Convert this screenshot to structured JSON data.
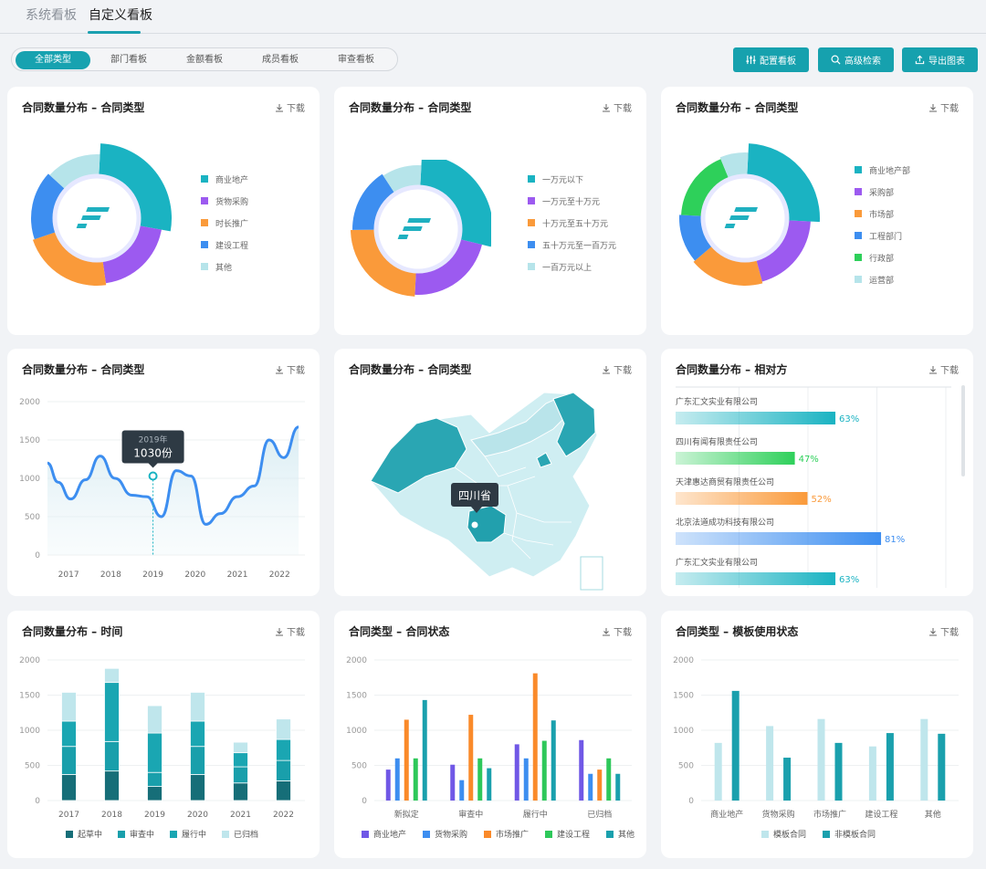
{
  "top_tabs": [
    "系统看板",
    "自定义看板"
  ],
  "segments": [
    "全部类型",
    "部门看板",
    "金额看板",
    "成员看板",
    "审查看板"
  ],
  "buttons": {
    "config": "配置看板",
    "search": "高级检索",
    "export": "导出图表"
  },
  "download_label": "下载",
  "colors": {
    "teal": "#1ab3c2",
    "purple": "#9c5af0",
    "orange": "#fa9a3a",
    "blue": "#3d8ef0",
    "light": "#b6e4ea",
    "green": "#2ed05a",
    "dark_teal": "#166e78"
  },
  "cards": {
    "pie1": {
      "title": "合同数量分布 – 合同类型"
    },
    "pie2": {
      "title": "合同数量分布 – 合同类型"
    },
    "pie3": {
      "title": "合同数量分布 – 合同类型"
    },
    "line": {
      "title": "合同数量分布 – 合同类型"
    },
    "map": {
      "title": "合同数量分布 – 合同类型",
      "tooltip": "四川省"
    },
    "hbar": {
      "title": "合同数量分布 – 相对方"
    },
    "time": {
      "title": "合同数量分布 – 时间"
    },
    "status": {
      "title": "合同类型 – 合同状态"
    },
    "template": {
      "title": "合同类型 – 模板使用状态"
    }
  },
  "chart_data": [
    {
      "id": "pie1",
      "type": "pie",
      "labels": [
        "商业地产",
        "货物采购",
        "时长推广",
        "建设工程",
        "其他"
      ],
      "values": [
        27,
        20,
        22,
        17,
        14
      ],
      "colors": [
        "#1ab3c2",
        "#9c5af0",
        "#fa9a3a",
        "#3d8ef0",
        "#b6e4ea"
      ]
    },
    {
      "id": "pie2",
      "type": "pie",
      "labels": [
        "一万元以下",
        "一万元至十万元",
        "十万元至五十万元",
        "五十万元至一百万元",
        "一百万元以上"
      ],
      "values": [
        28,
        22,
        24,
        16,
        10
      ],
      "colors": [
        "#1ab3c2",
        "#9c5af0",
        "#fa9a3a",
        "#3d8ef0",
        "#b6e4ea"
      ]
    },
    {
      "id": "pie3",
      "type": "pie",
      "labels": [
        "商业地产部",
        "采购部",
        "市场部",
        "工程部门",
        "行政部",
        "运营部"
      ],
      "values": [
        25,
        20,
        18,
        12,
        18,
        7
      ],
      "colors": [
        "#1ab3c2",
        "#9c5af0",
        "#fa9a3a",
        "#3d8ef0",
        "#2ed05a",
        "#b6e4ea"
      ]
    },
    {
      "id": "line",
      "type": "line",
      "categories": [
        "2017",
        "2018",
        "2019",
        "2020",
        "2021",
        "2022"
      ],
      "x": [
        2016.5,
        2016.75,
        2017.05,
        2017.4,
        2017.75,
        2018.1,
        2018.5,
        2018.85,
        2019.2,
        2019.55,
        2019.9,
        2020.25,
        2020.6,
        2021.0,
        2021.4,
        2021.75,
        2022.1,
        2022.45
      ],
      "values": [
        1200,
        950,
        730,
        980,
        1290,
        1000,
        780,
        760,
        500,
        1100,
        1030,
        400,
        540,
        760,
        900,
        1500,
        1270,
        1670
      ],
      "ylim": [
        0,
        2000
      ],
      "yticks": [
        0,
        500,
        1000,
        1500,
        2000
      ],
      "tooltip": {
        "year": "2019年",
        "value": "1030份",
        "x": 2019.0
      }
    },
    {
      "id": "hbar",
      "type": "bar",
      "orientation": "horizontal",
      "categories": [
        "广东汇文实业有限公司",
        "四川有闻有限责任公司",
        "天津惠达商贸有限责任公司",
        "北京法道成功科技有限公司",
        "广东汇文实业有限公司"
      ],
      "values": [
        63,
        47,
        52,
        81,
        63
      ],
      "labels": [
        "63%",
        "47%",
        "52%",
        "81%",
        "63%"
      ],
      "colors": [
        "#1ab3c2",
        "#2ed05a",
        "#fa9a3a",
        "#3d8ef0",
        "#1ab3c2"
      ]
    },
    {
      "id": "time",
      "type": "bar",
      "stacked": true,
      "categories": [
        "2017",
        "2018",
        "2019",
        "2020",
        "2021",
        "2022"
      ],
      "series": [
        {
          "name": "起草中",
          "values": [
            370,
            420,
            200,
            370,
            250,
            280
          ]
        },
        {
          "name": "审查中",
          "values": [
            400,
            420,
            200,
            400,
            230,
            290
          ]
        },
        {
          "name": "履行中",
          "values": [
            360,
            840,
            560,
            360,
            200,
            300
          ]
        },
        {
          "name": "已归档",
          "values": [
            410,
            200,
            390,
            410,
            150,
            290
          ]
        }
      ],
      "series_colors": [
        "#166e78",
        "#199fab",
        "#1aa6b2",
        "#bfe6ec"
      ],
      "ylim": [
        0,
        2000
      ],
      "yticks": [
        0,
        500,
        1000,
        1500,
        2000
      ]
    },
    {
      "id": "status",
      "type": "bar",
      "categories": [
        "新拟定",
        "审查中",
        "履行中",
        "已归档"
      ],
      "series": [
        {
          "name": "商业地产",
          "values": [
            440,
            510,
            800,
            860
          ]
        },
        {
          "name": "货物采购",
          "values": [
            600,
            290,
            600,
            380
          ]
        },
        {
          "name": "市场推广",
          "values": [
            1150,
            1220,
            1810,
            440
          ]
        },
        {
          "name": "建设工程",
          "values": [
            600,
            600,
            850,
            600
          ]
        },
        {
          "name": "其他",
          "values": [
            1430,
            460,
            1140,
            380
          ]
        }
      ],
      "series_colors": [
        "#7058e6",
        "#3d8ef0",
        "#fa8a2a",
        "#2ec85a",
        "#1aa0ad"
      ],
      "ylim": [
        0,
        2000
      ],
      "yticks": [
        0,
        500,
        1000,
        1500,
        2000
      ]
    },
    {
      "id": "template",
      "type": "bar",
      "categories": [
        "商业地产",
        "货物采购",
        "市场推广",
        "建设工程",
        "其他"
      ],
      "series": [
        {
          "name": "模板合同",
          "values": [
            820,
            1060,
            1160,
            770,
            1160
          ]
        },
        {
          "name": "非模板合同",
          "values": [
            1560,
            610,
            820,
            960,
            950
          ]
        }
      ],
      "series_colors": [
        "#bfe6ec",
        "#1aa0ad"
      ],
      "ylim": [
        0,
        2000
      ],
      "yticks": [
        0,
        500,
        1000,
        1500,
        2000
      ]
    }
  ]
}
